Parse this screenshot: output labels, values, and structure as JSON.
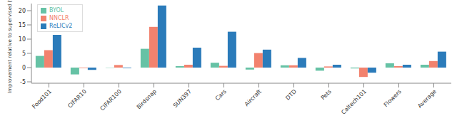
{
  "chart_data": {
    "type": "bar",
    "y_label": "Improvement relative to supervised (%)",
    "categories": [
      "Food101",
      "CIFAR10",
      "CIFAR100",
      "Birdsnap",
      "SUN397",
      "Cars",
      "Aircraft",
      "DTD",
      "Pets",
      "Caltech101",
      "Flowers",
      "Average"
    ],
    "series": [
      {
        "name": "BYOL",
        "color": "#66c2a5",
        "values": [
          4.1,
          -2.4,
          -0.1,
          6.6,
          0.5,
          1.7,
          -0.7,
          0.8,
          -1.1,
          -0.3,
          1.5,
          1.0
        ]
      },
      {
        "name": "NNCLR",
        "color": "#f2826e",
        "values": [
          6.1,
          -0.2,
          0.9,
          14.3,
          1.0,
          0.6,
          5.1,
          0.8,
          0.4,
          -3.3,
          0.5,
          2.3
        ]
      },
      {
        "name": "ReLICv2",
        "color": "#2b7bba",
        "values": [
          11.5,
          -0.8,
          -0.2,
          21.8,
          7.0,
          12.6,
          6.3,
          3.4,
          1.0,
          -1.8,
          1.0,
          5.6
        ]
      }
    ],
    "ylim": [
      -5.5,
      22.5
    ],
    "yticks": [
      -5,
      0,
      5,
      10,
      15,
      20
    ],
    "grid": false,
    "legend": "upper left"
  }
}
